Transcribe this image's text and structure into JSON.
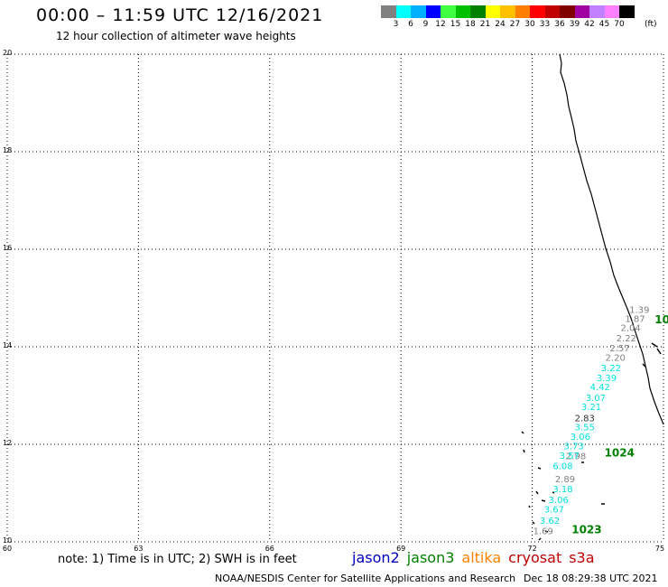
{
  "header": {
    "title": "00:00 – 11:59 UTC 12/16/2021",
    "subtitle": "12 hour collection of altimeter wave heights"
  },
  "scale": {
    "colors": [
      "#808080",
      "#00ffff",
      "#00b0ff",
      "#0000ff",
      "#40ff40",
      "#00c000",
      "#008000",
      "#ffff00",
      "#ffc000",
      "#ff8000",
      "#ff0000",
      "#c00000",
      "#800000",
      "#a000a0",
      "#c080ff",
      "#ff80ff",
      "#000000"
    ],
    "labels": [
      "3",
      "6",
      "9",
      "12",
      "15",
      "18",
      "21",
      "24",
      "27",
      "30",
      "33",
      "36",
      "39",
      "42",
      "45",
      "70"
    ],
    "unit": "(ft)"
  },
  "map": {
    "lat_labels": [
      "20",
      "18",
      "16",
      "14",
      "12",
      "10"
    ],
    "lon_labels": [
      "60",
      "63",
      "66",
      "69",
      "72",
      "75"
    ],
    "tracks": [
      {
        "satellite": "cryosat",
        "color": "#808080",
        "points": [
          {
            "lon": 74.45,
            "lat": 14.69,
            "swh": "1.39"
          },
          {
            "lon": 74.35,
            "lat": 14.51,
            "swh": "1.87"
          },
          {
            "lon": 74.25,
            "lat": 14.32,
            "swh": "2.04"
          },
          {
            "lon": 74.15,
            "lat": 14.11,
            "swh": "2.22"
          },
          {
            "lon": 74.0,
            "lat": 13.91,
            "swh": "2.57"
          },
          {
            "lon": 73.9,
            "lat": 13.71,
            "swh": "2.20"
          },
          {
            "lon": 73.0,
            "lat": 11.69,
            "swh": "2.98"
          },
          {
            "lon": 72.75,
            "lat": 11.22,
            "swh": "2.89"
          },
          {
            "lon": 72.25,
            "lat": 10.16,
            "swh": "1.69"
          }
        ]
      },
      {
        "satellite": "jason3",
        "color": "#00e0e0",
        "points": [
          {
            "lon": 73.8,
            "lat": 13.5,
            "swh": "3.22"
          },
          {
            "lon": 73.7,
            "lat": 13.3,
            "swh": "3.39"
          },
          {
            "lon": 73.55,
            "lat": 13.11,
            "swh": "4.42"
          },
          {
            "lon": 73.45,
            "lat": 12.89,
            "swh": "3.07"
          },
          {
            "lon": 73.35,
            "lat": 12.7,
            "swh": "3.21"
          },
          {
            "lon": 73.2,
            "lat": 12.29,
            "swh": "3.55"
          },
          {
            "lon": 73.1,
            "lat": 12.09,
            "swh": "3.06"
          },
          {
            "lon": 72.95,
            "lat": 11.9,
            "swh": "3.73"
          },
          {
            "lon": 72.85,
            "lat": 11.7,
            "swh": "3.57"
          },
          {
            "lon": 72.7,
            "lat": 11.49,
            "swh": "6.08"
          },
          {
            "lon": 72.7,
            "lat": 11.02,
            "swh": "3.18"
          },
          {
            "lon": 72.6,
            "lat": 10.8,
            "swh": "3.06"
          },
          {
            "lon": 72.5,
            "lat": 10.6,
            "swh": "3.67"
          },
          {
            "lon": 72.4,
            "lat": 10.37,
            "swh": "3.62"
          }
        ]
      },
      {
        "satellite": "cryosat",
        "color": "#303030",
        "points": [
          {
            "lon": 73.2,
            "lat": 12.47,
            "swh": "2.83"
          }
        ]
      }
    ],
    "station_labels": [
      {
        "lon": 74.8,
        "lat": 14.48,
        "text": "10",
        "color": "#008000"
      },
      {
        "lon": 73.65,
        "lat": 11.75,
        "text": "1024",
        "color": "#008000"
      },
      {
        "lon": 72.9,
        "lat": 10.18,
        "text": "1023",
        "color": "#008000"
      }
    ]
  },
  "footer": {
    "note": "note: 1) Time is in UTC; 2) SWH is in feet",
    "satellites": [
      {
        "name": "jason2",
        "color": "#0000c0"
      },
      {
        "name": "jason3",
        "color": "#008000"
      },
      {
        "name": "altika",
        "color": "#ff8000"
      },
      {
        "name": "cryosat",
        "color": "#c00000"
      },
      {
        "name": "s3a",
        "color": "#c00000"
      }
    ],
    "credit": "NOAA/NESDIS Center for Satellite Applications and Research",
    "timestamp": "Dec 18 08:29:38 UTC 2021"
  }
}
